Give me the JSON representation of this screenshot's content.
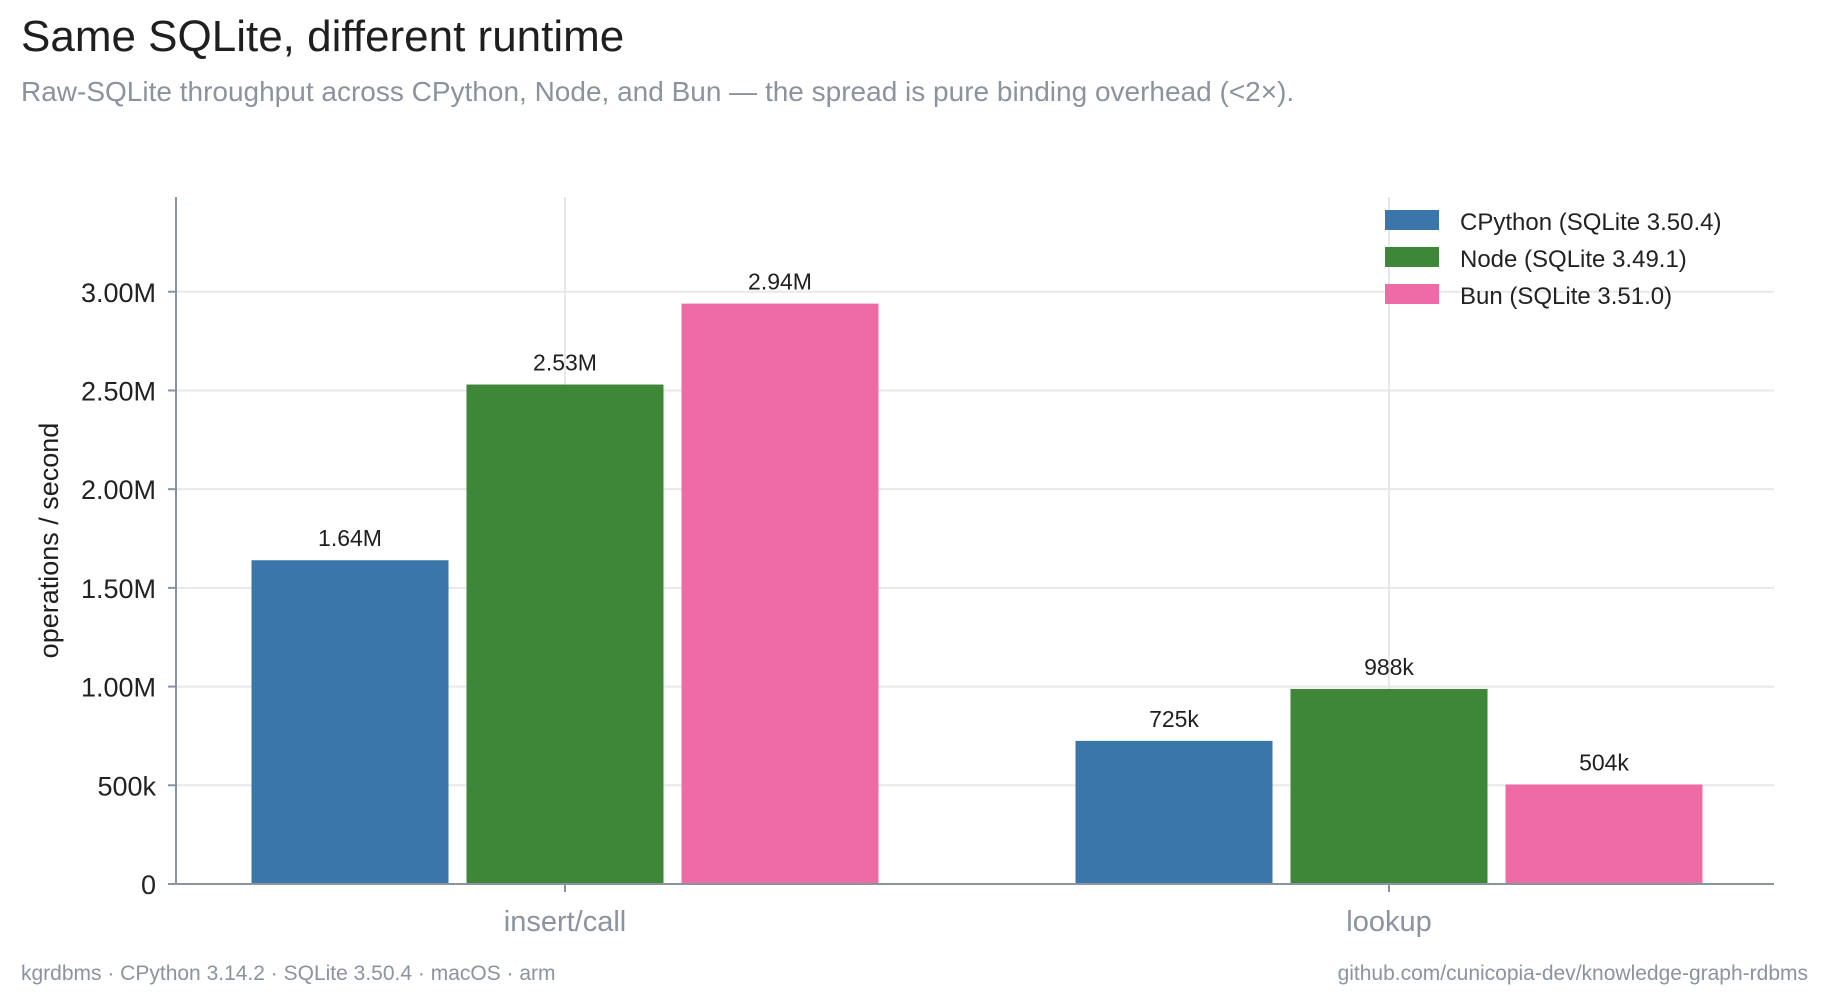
{
  "header": {
    "title": "Same SQLite, different runtime",
    "subtitle": "Raw-SQLite throughput across CPython, Node, and Bun — the spread is pure binding overhead (<2×)."
  },
  "footer": {
    "left": "kgrdbms · CPython 3.14.2 · SQLite 3.50.4 · macOS · arm",
    "right": "github.com/cunicopia-dev/knowledge-graph-rdbms"
  },
  "chart_data": {
    "type": "bar",
    "title": "Same SQLite, different runtime",
    "subtitle": "Raw-SQLite throughput across CPython, Node, and Bun — the spread is pure binding overhead (<2×).",
    "xlabel": "",
    "ylabel": "operations / second",
    "categories": [
      "insert/call",
      "lookup"
    ],
    "series": [
      {
        "name": "CPython (SQLite 3.50.4)",
        "color": "#3a76a9",
        "values": [
          1640000,
          725000
        ],
        "labels": [
          "1.64M",
          "725k"
        ]
      },
      {
        "name": "Node (SQLite 3.49.1)",
        "color": "#3e8739",
        "values": [
          2530000,
          988000
        ],
        "labels": [
          "2.53M",
          "988k"
        ]
      },
      {
        "name": "Bun (SQLite 3.51.0)",
        "color": "#ef6ba6",
        "values": [
          2940000,
          504000
        ],
        "labels": [
          "2.94M",
          "504k"
        ]
      }
    ],
    "ylim": [
      0,
      3480000
    ],
    "yticks": [
      0,
      500000,
      1000000,
      1500000,
      2000000,
      2500000,
      3000000
    ],
    "ytick_labels": [
      "0",
      "500k",
      "1.00M",
      "1.50M",
      "2.00M",
      "2.50M",
      "3.00M"
    ],
    "grid": true,
    "legend_position": "top-right",
    "colors": {
      "axis": "#8a939e",
      "grid": "#e6e8eb",
      "text": "#222222",
      "muted": "#8a939e"
    }
  }
}
